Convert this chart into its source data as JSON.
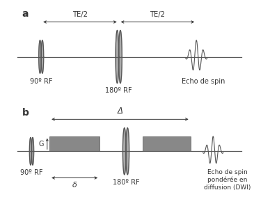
{
  "bg_color": "#ffffff",
  "line_color": "#555555",
  "pulse_color": "#555555",
  "rect_color": "#888888",
  "text_color": "#333333",
  "label_a": "a",
  "label_b": "b",
  "panel_a_label_90": "90º RF",
  "panel_a_label_180": "180º RF",
  "panel_a_label_echo": "Echo de spin",
  "panel_a_te2_left": "TE/2",
  "panel_a_te2_right": "TE/2",
  "panel_b_label_90": "90º RF",
  "panel_b_label_180": "180º RF",
  "panel_b_label_echo": "Echo de spin\npondu00e9rée en\ndiffusion (DWI)",
  "panel_b_delta": "Δ",
  "panel_b_delta_small": "δ",
  "panel_b_G": "G"
}
